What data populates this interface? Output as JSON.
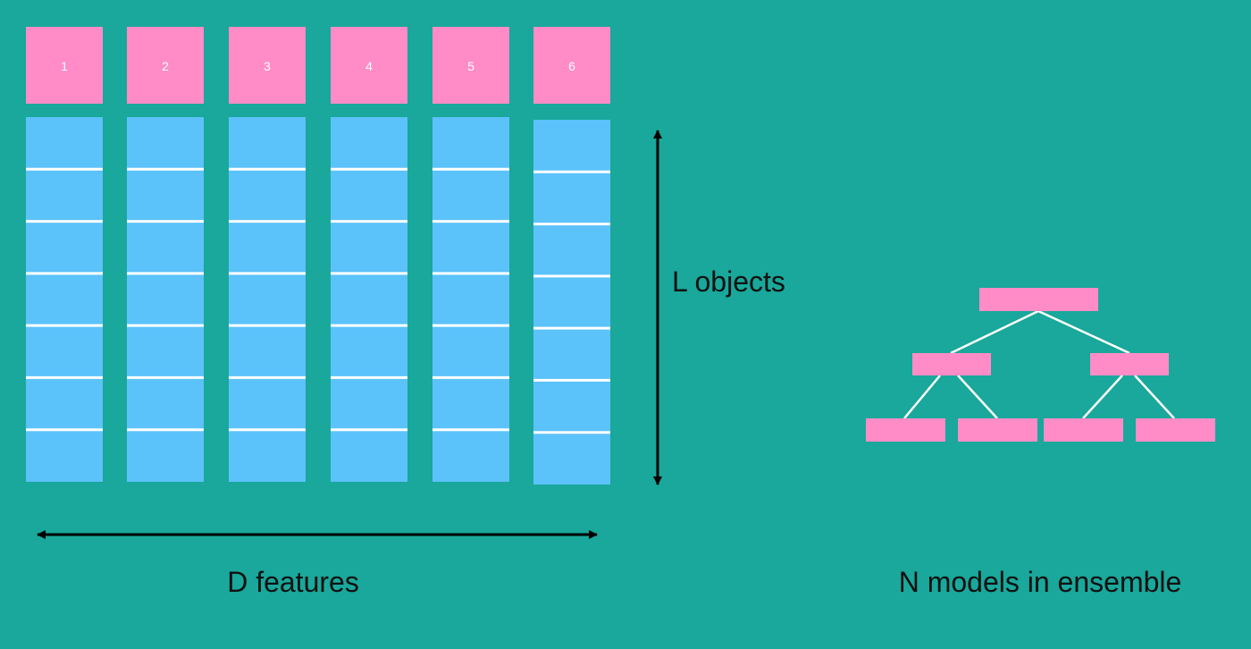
{
  "colors": {
    "background": "#19a89b",
    "header": "#ff8cc6",
    "column": "#5cc2fa",
    "row_divider": "#ffffff",
    "arrow": "#000000",
    "tree_node": "#ff8cc6",
    "tree_edge": "#ffffff",
    "header_text": "#ffffff",
    "label_text": "#111111"
  },
  "features": {
    "headers": [
      "1",
      "2",
      "3",
      "4",
      "5",
      "6"
    ]
  },
  "labels": {
    "objects": "L objects",
    "features": "D features",
    "ensemble": "N models in ensemble"
  },
  "icons": {
    "vertical_arrow": "double-arrow-vertical-icon",
    "horizontal_arrow": "double-arrow-horizontal-icon"
  }
}
